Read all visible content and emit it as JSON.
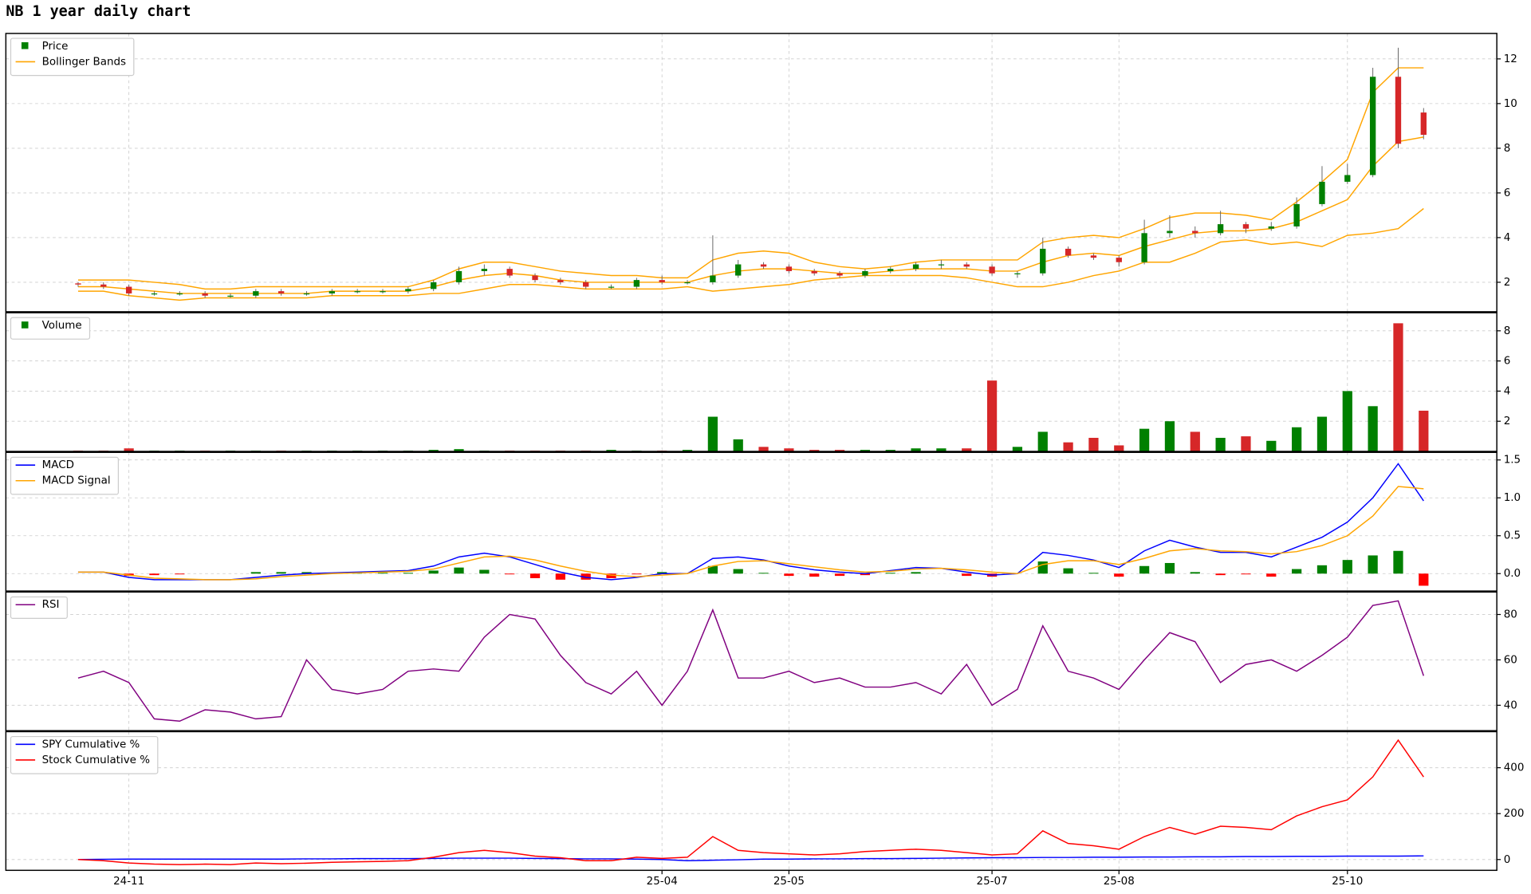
{
  "chart_data": [
    {
      "type": "candlestick",
      "title": "NB 1 year daily chart",
      "legend": "upper left",
      "grid": true,
      "ylim": [
        0.68,
        13.14
      ],
      "yticks": [
        2,
        4,
        6,
        8,
        10,
        12
      ],
      "series": [
        {
          "name": "Price",
          "color": "#008000",
          "down_color": "#d62728",
          "open": [
            1.95,
            1.9,
            1.8,
            1.5,
            1.5,
            1.5,
            1.4,
            1.4,
            1.6,
            1.5,
            1.5,
            1.6,
            1.6,
            1.6,
            1.7,
            2.0,
            2.5,
            2.6,
            2.3,
            2.1,
            2.0,
            1.8,
            1.8,
            2.1,
            2.0,
            2.0,
            2.3,
            2.8,
            2.7,
            2.5,
            2.4,
            2.3,
            2.5,
            2.6,
            2.8,
            2.8,
            2.7,
            2.4,
            2.4,
            3.5,
            3.2,
            3.1,
            2.9,
            4.2,
            4.3,
            4.2,
            4.6,
            4.4,
            4.5,
            5.5,
            6.5,
            6.8,
            11.2,
            9.6
          ],
          "high": [
            2.0,
            2.0,
            1.9,
            1.6,
            1.6,
            1.6,
            1.5,
            1.7,
            1.7,
            1.6,
            1.7,
            1.7,
            1.7,
            1.8,
            2.1,
            2.7,
            2.8,
            2.7,
            2.4,
            2.2,
            2.1,
            1.9,
            2.2,
            2.3,
            2.1,
            4.1,
            3.0,
            2.9,
            2.8,
            2.6,
            2.5,
            2.6,
            2.7,
            2.9,
            3.0,
            2.9,
            2.8,
            2.5,
            4.0,
            3.6,
            3.3,
            3.2,
            4.8,
            5.0,
            4.5,
            5.2,
            4.7,
            4.7,
            5.8,
            7.2,
            7.3,
            11.6,
            12.5,
            9.8
          ],
          "low": [
            1.8,
            1.7,
            1.4,
            1.4,
            1.4,
            1.3,
            1.3,
            1.3,
            1.4,
            1.4,
            1.4,
            1.5,
            1.5,
            1.5,
            1.6,
            1.9,
            2.3,
            2.2,
            2.0,
            1.9,
            1.7,
            1.7,
            1.7,
            1.9,
            1.9,
            1.9,
            2.2,
            2.6,
            2.4,
            2.3,
            2.2,
            2.2,
            2.4,
            2.5,
            2.6,
            2.6,
            2.3,
            2.2,
            2.3,
            3.1,
            3.0,
            2.7,
            2.8,
            4.0,
            4.0,
            4.1,
            4.2,
            4.3,
            4.4,
            5.4,
            6.4,
            6.7,
            8.0,
            8.4
          ],
          "close": [
            1.9,
            1.8,
            1.5,
            1.5,
            1.5,
            1.4,
            1.4,
            1.6,
            1.5,
            1.5,
            1.6,
            1.6,
            1.6,
            1.7,
            2.0,
            2.5,
            2.6,
            2.3,
            2.1,
            2.0,
            1.8,
            1.8,
            2.1,
            2.0,
            2.0,
            2.3,
            2.8,
            2.7,
            2.5,
            2.4,
            2.3,
            2.5,
            2.6,
            2.8,
            2.8,
            2.7,
            2.4,
            2.4,
            3.5,
            3.2,
            3.1,
            2.9,
            4.2,
            4.3,
            4.2,
            4.6,
            4.4,
            4.5,
            5.5,
            6.5,
            6.8,
            11.2,
            8.2,
            8.6
          ]
        },
        {
          "name": "Bollinger Bands",
          "color": "#ffa500",
          "upper": [
            2.1,
            2.1,
            2.1,
            2.0,
            1.9,
            1.7,
            1.7,
            1.8,
            1.8,
            1.8,
            1.8,
            1.8,
            1.8,
            1.8,
            2.1,
            2.6,
            2.9,
            2.9,
            2.7,
            2.5,
            2.4,
            2.3,
            2.3,
            2.2,
            2.2,
            3.0,
            3.3,
            3.4,
            3.3,
            2.9,
            2.7,
            2.6,
            2.7,
            2.9,
            3.0,
            3.0,
            3.0,
            3.0,
            3.8,
            4.0,
            4.1,
            4.0,
            4.4,
            4.9,
            5.1,
            5.1,
            5.0,
            4.8,
            5.6,
            6.5,
            7.5,
            10.5,
            11.6,
            11.6
          ],
          "middle": [
            1.8,
            1.8,
            1.7,
            1.6,
            1.5,
            1.5,
            1.5,
            1.5,
            1.5,
            1.5,
            1.6,
            1.6,
            1.6,
            1.6,
            1.8,
            2.1,
            2.3,
            2.4,
            2.3,
            2.1,
            2.0,
            2.0,
            2.0,
            2.0,
            2.0,
            2.3,
            2.5,
            2.6,
            2.6,
            2.5,
            2.4,
            2.4,
            2.5,
            2.6,
            2.6,
            2.6,
            2.5,
            2.5,
            2.9,
            3.2,
            3.3,
            3.2,
            3.6,
            3.9,
            4.2,
            4.3,
            4.3,
            4.4,
            4.7,
            5.2,
            5.7,
            7.2,
            8.3,
            8.5
          ],
          "lower": [
            1.6,
            1.6,
            1.4,
            1.3,
            1.2,
            1.3,
            1.3,
            1.3,
            1.3,
            1.3,
            1.4,
            1.4,
            1.4,
            1.4,
            1.5,
            1.5,
            1.7,
            1.9,
            1.9,
            1.8,
            1.7,
            1.7,
            1.7,
            1.7,
            1.8,
            1.6,
            1.7,
            1.8,
            1.9,
            2.1,
            2.2,
            2.3,
            2.3,
            2.3,
            2.3,
            2.2,
            2.0,
            1.8,
            1.8,
            2.0,
            2.3,
            2.5,
            2.9,
            2.9,
            3.3,
            3.8,
            3.9,
            3.7,
            3.8,
            3.6,
            4.1,
            4.2,
            4.4,
            5.3
          ]
        }
      ]
    },
    {
      "type": "bar",
      "legend": "upper left",
      "grid": true,
      "ylim": [
        0,
        9.2
      ],
      "yticks": [
        2,
        4,
        6,
        8
      ],
      "series": [
        {
          "name": "Volume",
          "color": "#008000",
          "down_color": "#d62728",
          "values": [
            0.05,
            0.05,
            0.2,
            0.05,
            0.05,
            0.05,
            0.05,
            0.05,
            0.05,
            0.05,
            0.05,
            0.05,
            0.05,
            0.05,
            0.1,
            0.15,
            0.05,
            0.05,
            0.05,
            0.05,
            0.05,
            0.1,
            0.05,
            0.05,
            0.1,
            2.3,
            0.8,
            0.3,
            0.2,
            0.1,
            0.1,
            0.1,
            0.1,
            0.2,
            0.2,
            0.2,
            4.7,
            0.3,
            1.3,
            0.6,
            0.9,
            0.4,
            1.5,
            2.0,
            1.3,
            0.9,
            1.0,
            0.7,
            1.6,
            2.3,
            4.0,
            3.0,
            8.5,
            2.7
          ]
        }
      ]
    },
    {
      "type": "macd",
      "legend": "upper left",
      "grid": true,
      "ylim": [
        -0.23,
        1.6
      ],
      "yticks": [
        {
          "value": 0,
          "label": "0.0"
        },
        {
          "value": 0.5,
          "label": "0.5"
        },
        {
          "value": 1,
          "label": "1.0"
        },
        {
          "value": 1.5,
          "label": "1.5"
        }
      ],
      "series": [
        {
          "name": "MACD",
          "color": "#0000ff",
          "values": [
            0.02,
            0.02,
            -0.05,
            -0.08,
            -0.08,
            -0.08,
            -0.08,
            -0.05,
            -0.02,
            0.0,
            0.01,
            0.02,
            0.03,
            0.04,
            0.1,
            0.22,
            0.27,
            0.22,
            0.12,
            0.02,
            -0.05,
            -0.08,
            -0.05,
            0.0,
            0.0,
            0.2,
            0.22,
            0.18,
            0.1,
            0.05,
            0.02,
            0.0,
            0.04,
            0.08,
            0.07,
            0.02,
            -0.02,
            0.0,
            0.28,
            0.24,
            0.18,
            0.08,
            0.3,
            0.44,
            0.35,
            0.28,
            0.28,
            0.22,
            0.35,
            0.48,
            0.68,
            1.0,
            1.45,
            0.96
          ]
        },
        {
          "name": "MACD Signal",
          "color": "#ffa500",
          "values": [
            0.02,
            0.02,
            -0.02,
            -0.06,
            -0.07,
            -0.08,
            -0.08,
            -0.07,
            -0.04,
            -0.02,
            0.0,
            0.01,
            0.02,
            0.03,
            0.06,
            0.14,
            0.22,
            0.23,
            0.18,
            0.1,
            0.03,
            -0.02,
            -0.04,
            -0.02,
            0.0,
            0.1,
            0.16,
            0.17,
            0.13,
            0.09,
            0.05,
            0.02,
            0.03,
            0.06,
            0.07,
            0.05,
            0.02,
            0.0,
            0.12,
            0.17,
            0.17,
            0.12,
            0.2,
            0.3,
            0.33,
            0.3,
            0.29,
            0.26,
            0.29,
            0.37,
            0.5,
            0.76,
            1.15,
            1.12
          ]
        }
      ],
      "histogram": {
        "color": "#008000",
        "down_color": "#ff0000",
        "values": [
          0,
          0,
          -0.03,
          -0.02,
          -0.01,
          0,
          0,
          0.02,
          0.02,
          0.02,
          0.01,
          0.01,
          0.01,
          0.01,
          0.04,
          0.08,
          0.05,
          -0.01,
          -0.06,
          -0.08,
          -0.08,
          -0.06,
          -0.01,
          0.02,
          0,
          0.1,
          0.06,
          0.01,
          -0.03,
          -0.04,
          -0.03,
          -0.02,
          0.01,
          0.02,
          0,
          -0.03,
          -0.04,
          0,
          0.16,
          0.07,
          0.01,
          -0.04,
          0.1,
          0.14,
          0.02,
          -0.02,
          -0.01,
          -0.04,
          0.06,
          0.11,
          0.18,
          0.24,
          0.3,
          -0.16
        ]
      }
    },
    {
      "type": "line",
      "legend": "upper left",
      "grid": true,
      "ylim": [
        28.8,
        89.9
      ],
      "yticks": [
        40,
        60,
        80
      ],
      "series": [
        {
          "name": "RSI",
          "color": "#800080",
          "values": [
            52,
            55,
            50,
            34,
            33,
            38,
            37,
            34,
            35,
            60,
            47,
            45,
            47,
            55,
            56,
            55,
            70,
            80,
            78,
            62,
            50,
            45,
            55,
            40,
            55,
            82,
            52,
            52,
            55,
            50,
            52,
            48,
            48,
            50,
            45,
            58,
            40,
            47,
            75,
            55,
            52,
            47,
            60,
            72,
            68,
            50,
            58,
            60,
            55,
            62,
            70,
            84,
            86,
            53
          ]
        }
      ]
    },
    {
      "type": "line",
      "legend": "upper left",
      "grid": true,
      "ylim": [
        -47,
        557
      ],
      "yticks": [
        0,
        200,
        400
      ],
      "categories": [
        null,
        null,
        "24-11",
        null,
        null,
        null,
        null,
        null,
        null,
        null,
        null,
        null,
        null,
        null,
        null,
        null,
        null,
        null,
        null,
        null,
        null,
        null,
        null,
        "25-04",
        null,
        null,
        null,
        null,
        "25-05",
        null,
        null,
        null,
        null,
        null,
        null,
        null,
        "25-07",
        null,
        null,
        null,
        null,
        "25-08",
        null,
        null,
        null,
        null,
        null,
        null,
        null,
        null,
        "25-10",
        null,
        null,
        null
      ],
      "series": [
        {
          "name": "SPY Cumulative %",
          "color": "#0000ff",
          "values": [
            0,
            1,
            2,
            2,
            2,
            2,
            2,
            2,
            2,
            3,
            3,
            4,
            4,
            4,
            5,
            6,
            6,
            6,
            5,
            4,
            3,
            3,
            2,
            0,
            -5,
            -3,
            -1,
            2,
            2,
            3,
            3,
            4,
            4,
            5,
            6,
            7,
            8,
            8,
            9,
            9,
            10,
            10,
            11,
            11,
            12,
            12,
            13,
            13,
            14,
            14,
            15,
            15,
            15,
            16
          ]
        },
        {
          "name": "Stock Cumulative %",
          "color": "#ff0000",
          "values": [
            0,
            -5,
            -15,
            -20,
            -22,
            -20,
            -22,
            -15,
            -18,
            -16,
            -12,
            -10,
            -8,
            -5,
            10,
            30,
            40,
            30,
            15,
            8,
            -5,
            -5,
            10,
            5,
            10,
            100,
            40,
            30,
            25,
            20,
            25,
            35,
            40,
            45,
            40,
            30,
            20,
            25,
            125,
            70,
            60,
            45,
            100,
            140,
            110,
            145,
            140,
            130,
            190,
            230,
            260,
            360,
            520,
            360
          ]
        }
      ]
    }
  ]
}
